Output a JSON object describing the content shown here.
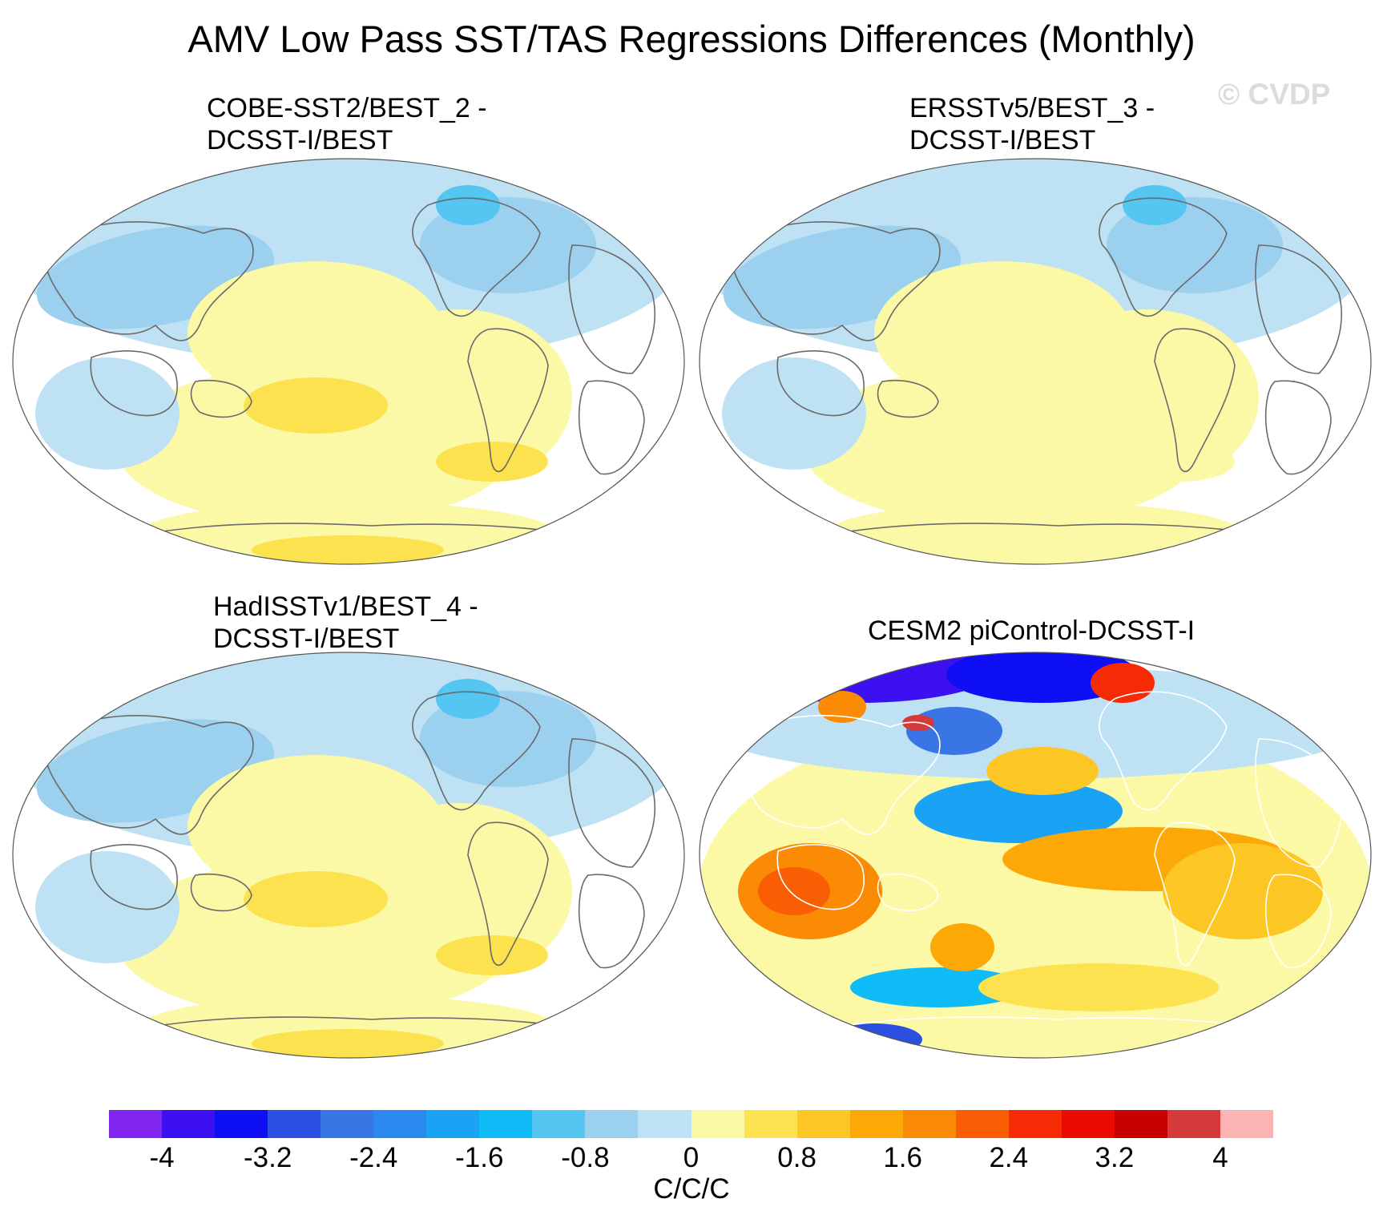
{
  "title": "AMV Low Pass SST/TAS Regressions Differences (Monthly)",
  "watermark": "© CVDP",
  "panels": [
    {
      "line1": "COBE-SST2/BEST_2 -",
      "line2": "DCSST-I/BEST",
      "style": "obs"
    },
    {
      "line1": "ERSSTv5/BEST_3 -",
      "line2": "DCSST-I/BEST",
      "style": "obs"
    },
    {
      "line1": "HadISSTv1/BEST_4 -",
      "line2": "DCSST-I/BEST",
      "style": "obs"
    },
    {
      "line1": "CESM2 piControl-DCSST-I",
      "line2": "",
      "style": "model"
    }
  ],
  "colorbar": {
    "colors": [
      "#8126f0",
      "#3c10f0",
      "#0f0ff5",
      "#2b4fe0",
      "#3a75e6",
      "#2a88ef",
      "#1aa2f5",
      "#10bcf8",
      "#55c6f2",
      "#9bd0ef",
      "#bfe1f4",
      "#fbf9a6",
      "#fce24e",
      "#fcc725",
      "#fca806",
      "#fb8b04",
      "#f95e04",
      "#f62a04",
      "#ea0a02",
      "#c80000",
      "#d53a3a",
      "#fbb3b3"
    ],
    "tick_labels": [
      "-4",
      "-3.2",
      "-2.4",
      "-1.6",
      "-0.8",
      "0",
      "0.8",
      "1.6",
      "2.4",
      "3.2",
      "4"
    ],
    "units": "C/C/C"
  }
}
